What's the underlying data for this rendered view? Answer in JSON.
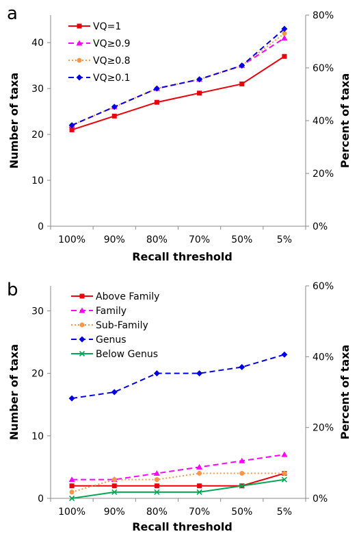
{
  "chart_data": [
    {
      "type": "line",
      "panel_label": "a",
      "categories": [
        "100%",
        "90%",
        "80%",
        "70%",
        "50%",
        "5%"
      ],
      "series": [
        {
          "name": "VQ=1",
          "color": "#e8000b",
          "dash": "",
          "marker": "square",
          "values": [
            21,
            24,
            27,
            29,
            31,
            37
          ]
        },
        {
          "name": "VQ≥0.9",
          "color": "#ff00ff",
          "dash": "8,5",
          "marker": "triangle",
          "values": [
            22,
            26,
            30,
            32,
            35,
            41
          ]
        },
        {
          "name": "VQ≥0.8",
          "color": "#f79646",
          "dash": "2,3",
          "marker": "circle",
          "values": [
            22,
            26,
            30,
            32,
            35,
            42
          ]
        },
        {
          "name": "VQ≥0.1",
          "color": "#0000e0",
          "dash": "8,5",
          "marker": "diamond",
          "values": [
            22,
            26,
            30,
            32,
            35,
            43
          ]
        }
      ],
      "xlabel": "Recall threshold",
      "ylabel": "Number of taxa",
      "y2label": "Percent of taxa",
      "ylim": [
        0,
        46
      ],
      "yticks": [
        0,
        10,
        20,
        30,
        40
      ],
      "y2ticks": [
        "0%",
        "20%",
        "40%",
        "60%",
        "80%"
      ],
      "legend_position": "top-left",
      "grid": false
    },
    {
      "type": "line",
      "panel_label": "b",
      "categories": [
        "100%",
        "90%",
        "80%",
        "70%",
        "50%",
        "5%"
      ],
      "series": [
        {
          "name": "Above Family",
          "color": "#e8000b",
          "dash": "",
          "marker": "square",
          "values": [
            2,
            2,
            2,
            2,
            2,
            4
          ]
        },
        {
          "name": "Family",
          "color": "#ff00ff",
          "dash": "8,5",
          "marker": "triangle",
          "values": [
            3,
            3,
            4,
            5,
            6,
            7
          ]
        },
        {
          "name": "Sub-Family",
          "color": "#f79646",
          "dash": "2,3",
          "marker": "circle",
          "values": [
            1,
            3,
            3,
            4,
            4,
            4
          ]
        },
        {
          "name": "Genus",
          "color": "#0000e0",
          "dash": "8,5",
          "marker": "diamond",
          "values": [
            16,
            17,
            20,
            20,
            21,
            23
          ]
        },
        {
          "name": "Below Genus",
          "color": "#00a651",
          "dash": "",
          "marker": "x",
          "values": [
            0,
            1,
            1,
            1,
            2,
            3
          ]
        }
      ],
      "xlabel": "Recall threshold",
      "ylabel": "Number of taxa",
      "y2label": "Percent of taxa",
      "ylim": [
        0,
        34
      ],
      "yticks": [
        0,
        10,
        20,
        30
      ],
      "y2ticks": [
        "0%",
        "20%",
        "40%",
        "60%"
      ],
      "legend_position": "top-left",
      "grid": false
    }
  ]
}
